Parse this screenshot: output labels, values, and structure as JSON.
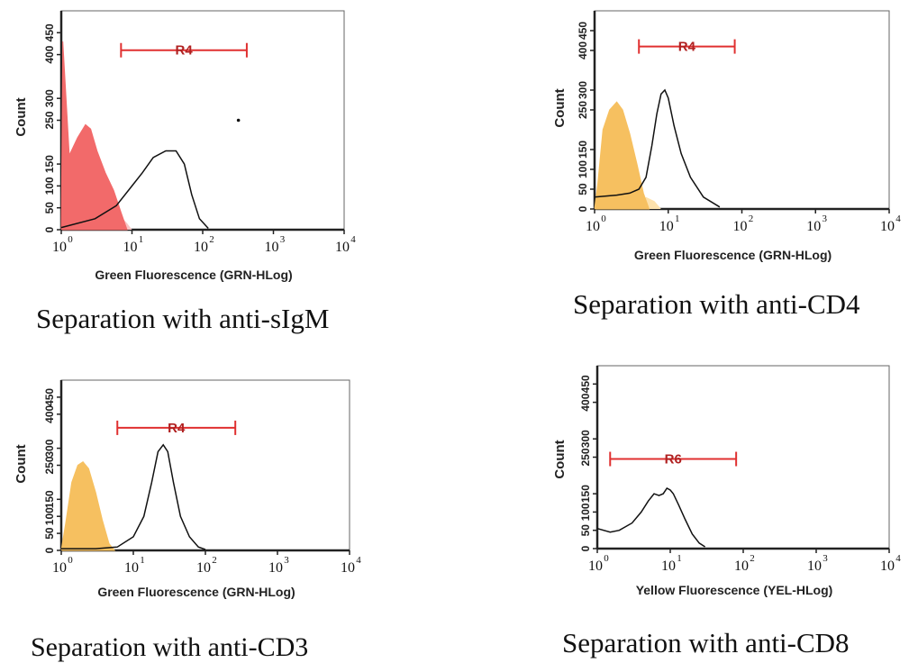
{
  "colors": {
    "gate": "#e03030",
    "gate_label": "#b02020",
    "fill_red": "#f26a6a",
    "fill_red_light": "#f9c4c4",
    "fill_orange": "#f6c060",
    "fill_orange_light": "#fde2ad",
    "curve": "#111111"
  },
  "chart_data": [
    {
      "type": "area",
      "caption": "Separation with anti-sIgM",
      "xlabel": "Green Fluorescence (GRN-HLog)",
      "ylabel": "Count",
      "x_scale": "log",
      "xlim": [
        1,
        10000
      ],
      "ylim": [
        0,
        500
      ],
      "x_ticks": [
        1,
        10,
        100,
        1000,
        10000
      ],
      "x_tick_labels": [
        "10",
        "10",
        "10",
        "10",
        "10"
      ],
      "x_tick_exps": [
        "0",
        "1",
        "2",
        "3",
        "4"
      ],
      "y_ticks": [
        0,
        50,
        100,
        150,
        250,
        300,
        400,
        450
      ],
      "y_tick_labels": [
        "0",
        "50",
        "100",
        "150",
        "250",
        "300",
        "400",
        "450"
      ],
      "gate": {
        "label": "R4",
        "x_start": 7,
        "x_end": 420,
        "y": 410
      },
      "filled_series": {
        "fill": "red",
        "x": [
          1,
          1.05,
          1.3,
          1.7,
          2.2,
          2.6,
          3.2,
          4.2,
          5.5,
          7,
          8.5
        ],
        "y": [
          0,
          430,
          170,
          210,
          240,
          230,
          180,
          130,
          90,
          40,
          0
        ]
      },
      "light_series": {
        "fill": "red",
        "x": [
          1,
          3,
          5,
          7,
          8.5,
          10
        ],
        "y": [
          0,
          20,
          35,
          30,
          15,
          0
        ]
      },
      "open_series": {
        "x": [
          1,
          3,
          6,
          10,
          14,
          20,
          30,
          42,
          55,
          70,
          90,
          120
        ],
        "y": [
          5,
          25,
          55,
          100,
          130,
          165,
          180,
          180,
          150,
          80,
          25,
          3
        ]
      },
      "annotations": [
        {
          "x": 320,
          "y": 250
        }
      ]
    },
    {
      "type": "area",
      "caption": "Separation with anti-CD4",
      "xlabel": "Green Fluorescence (GRN-HLog)",
      "ylabel": "Count",
      "x_scale": "log",
      "xlim": [
        1,
        10000
      ],
      "ylim": [
        0,
        500
      ],
      "x_ticks": [
        1,
        10,
        100,
        1000,
        10000
      ],
      "x_tick_labels": [
        "10",
        "10",
        "10",
        "10",
        "10"
      ],
      "x_tick_exps": [
        "0",
        "1",
        "2",
        "3",
        "4"
      ],
      "y_ticks": [
        0,
        50,
        100,
        150,
        250,
        300,
        400,
        450
      ],
      "y_tick_labels": [
        "0",
        "50",
        "100",
        "150",
        "250",
        "300",
        "400",
        "450"
      ],
      "gate": {
        "label": "R4",
        "x_start": 4,
        "x_end": 80,
        "y": 410
      },
      "filled_series": {
        "fill": "orange",
        "x": [
          1,
          1.1,
          1.3,
          1.6,
          2,
          2.4,
          3,
          3.8,
          4.6,
          5.5
        ],
        "y": [
          0,
          60,
          200,
          250,
          270,
          250,
          190,
          110,
          40,
          0
        ]
      },
      "light_series": {
        "fill": "orange",
        "x": [
          3.5,
          5,
          6.5,
          8
        ],
        "y": [
          0,
          30,
          20,
          0
        ]
      },
      "open_series": {
        "x": [
          1,
          2,
          3,
          4,
          5,
          6,
          7,
          8,
          9,
          10,
          12,
          15,
          20,
          30,
          50
        ],
        "y": [
          30,
          35,
          40,
          50,
          80,
          160,
          240,
          290,
          300,
          280,
          210,
          140,
          80,
          30,
          5
        ]
      },
      "annotations": []
    },
    {
      "type": "area",
      "caption": "Separation with anti-CD3",
      "xlabel": "Green Fluorescence (GRN-HLog)",
      "ylabel": "Count",
      "x_scale": "log",
      "xlim": [
        1,
        10000
      ],
      "ylim": [
        0,
        500
      ],
      "x_ticks": [
        1,
        10,
        100,
        1000,
        10000
      ],
      "x_tick_labels": [
        "10",
        "10",
        "10",
        "10",
        "10"
      ],
      "x_tick_exps": [
        "0",
        "1",
        "2",
        "3",
        "4"
      ],
      "y_ticks": [
        0,
        50,
        100,
        150,
        250,
        300,
        400,
        450
      ],
      "y_tick_labels": [
        "0",
        "50",
        "100",
        "150",
        "250",
        "300",
        "400",
        "450"
      ],
      "gate": {
        "label": "R4",
        "x_start": 6,
        "x_end": 260,
        "y": 360
      },
      "filled_series": {
        "fill": "orange",
        "x": [
          1,
          1.15,
          1.4,
          1.7,
          2,
          2.4,
          3,
          3.7,
          4.6,
          5.5
        ],
        "y": [
          0,
          80,
          200,
          250,
          260,
          240,
          170,
          90,
          20,
          0
        ]
      },
      "light_series": null,
      "open_series": {
        "x": [
          1,
          3,
          6,
          10,
          14,
          18,
          22,
          26,
          30,
          36,
          45,
          60,
          80,
          100
        ],
        "y": [
          5,
          5,
          10,
          40,
          100,
          200,
          290,
          310,
          290,
          200,
          100,
          40,
          10,
          3
        ]
      },
      "annotations": []
    },
    {
      "type": "area",
      "caption": "Separation with anti-CD8",
      "xlabel": "Yellow Fluorescence (YEL-HLog)",
      "ylabel": "Count",
      "x_scale": "log",
      "xlim": [
        1,
        10000
      ],
      "ylim": [
        0,
        500
      ],
      "x_ticks": [
        1,
        10,
        100,
        1000,
        10000
      ],
      "x_tick_labels": [
        "10",
        "10",
        "10",
        "10",
        "10"
      ],
      "x_tick_exps": [
        "0",
        "1",
        "2",
        "3",
        "4"
      ],
      "y_ticks": [
        0,
        50,
        100,
        150,
        250,
        300,
        400,
        450
      ],
      "y_tick_labels": [
        "0",
        "50",
        "100",
        "150",
        "250",
        "300",
        "400",
        "450"
      ],
      "gate": {
        "label": "R6",
        "x_start": 1.5,
        "x_end": 80,
        "y": 245
      },
      "filled_series": null,
      "light_series": null,
      "open_series": {
        "x": [
          1,
          1.5,
          2,
          3,
          4,
          5,
          6,
          7,
          8,
          9,
          10,
          11,
          13,
          16,
          20,
          25,
          30
        ],
        "y": [
          55,
          45,
          50,
          70,
          100,
          130,
          150,
          145,
          150,
          165,
          160,
          150,
          120,
          80,
          40,
          15,
          5
        ]
      },
      "annotations": []
    }
  ]
}
